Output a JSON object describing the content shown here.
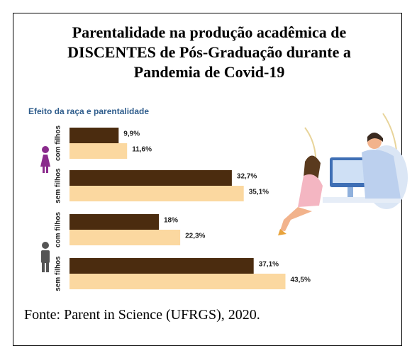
{
  "chart_data": {
    "type": "bar",
    "orientation": "horizontal",
    "title": "Parentalidade na produção acadêmica de DISCENTES de Pós-Graduação durante a Pandemia de Covid-19",
    "subtitle": "Efeito da raça e parentalidade",
    "categories": [
      "com filhos",
      "sem filhos",
      "com filhos",
      "sem filhos"
    ],
    "series": [
      {
        "color": "#4b2c0f",
        "values": [
          9.9,
          32.7,
          18,
          37.1
        ],
        "value_labels": [
          "9,9%",
          "32,7%",
          "18%",
          "37,1%"
        ]
      },
      {
        "color": "#fbd8a0",
        "values": [
          11.6,
          35.1,
          22.3,
          43.5
        ],
        "value_labels": [
          "11,6%",
          "35,1%",
          "22,3%",
          "43,5%"
        ]
      }
    ],
    "source": "Fonte: Parent in Science (UFRGS), 2020."
  }
}
